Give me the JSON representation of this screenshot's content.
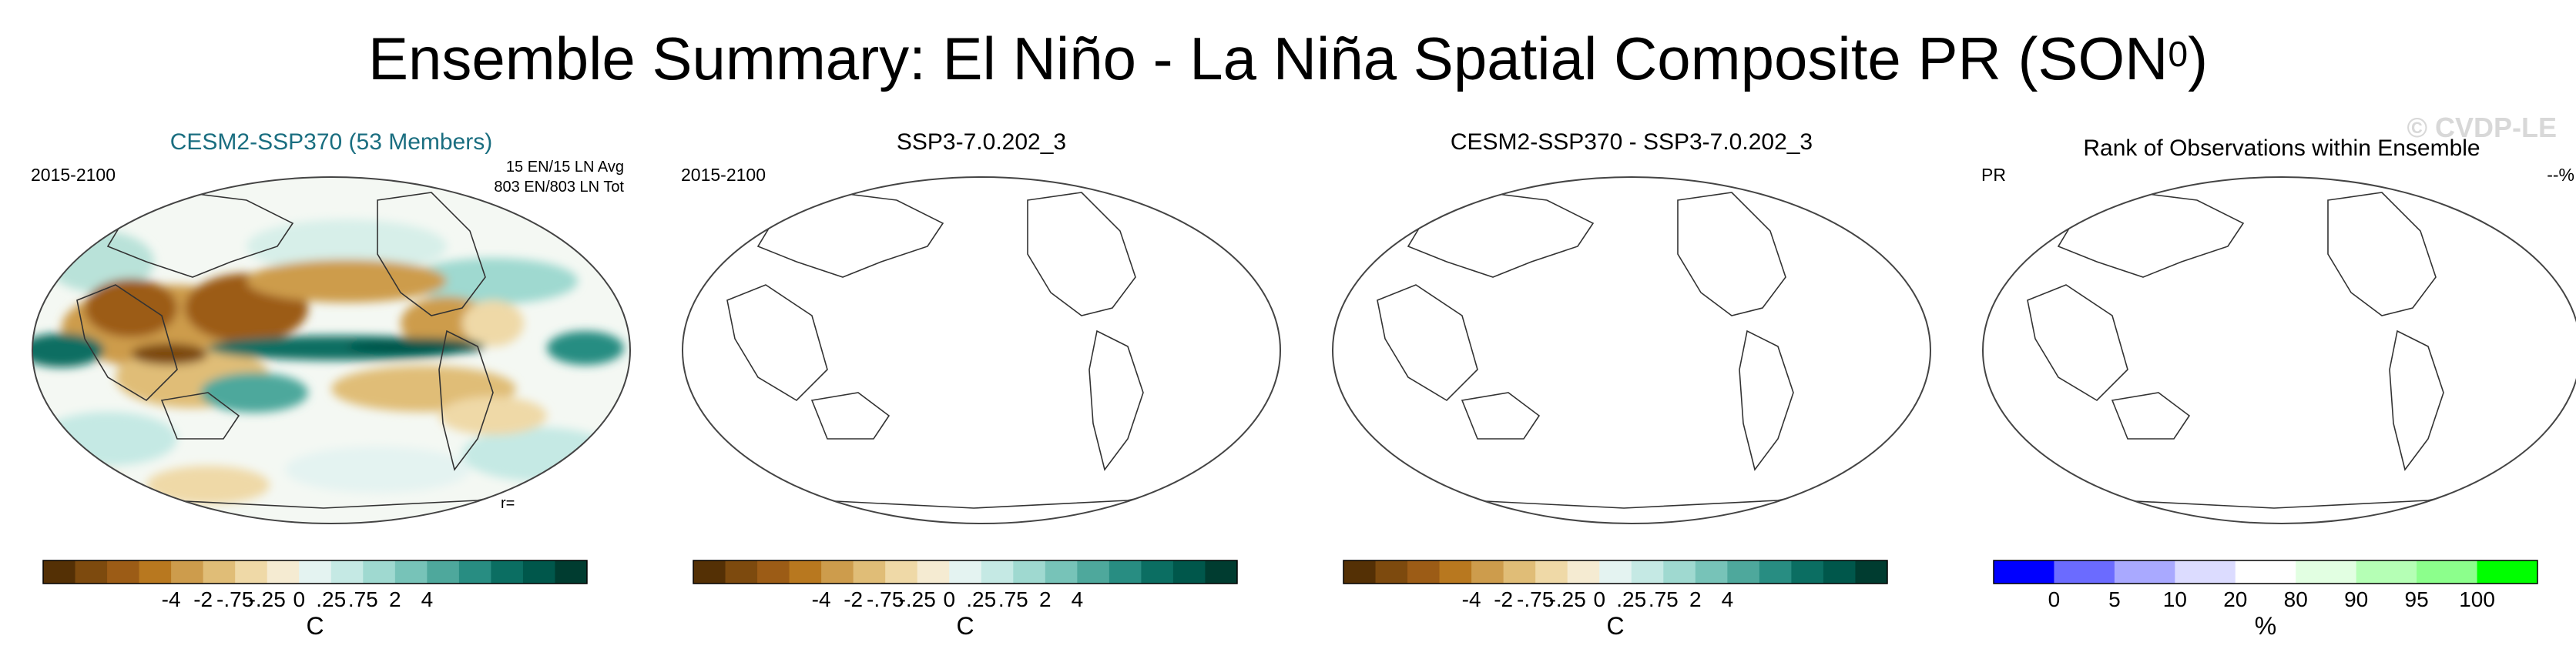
{
  "title": {
    "main": "Ensemble Summary: El Niño - La Niña Spatial Composite PR (SON",
    "sup": "0",
    "close": ")"
  },
  "watermark": "© CVDP-LE",
  "colors": {
    "brbg": [
      "#543005",
      "#7d4a0e",
      "#9c5c16",
      "#b8781f",
      "#cd9c4c",
      "#e0bd77",
      "#efd9a7",
      "#f5ebd2",
      "#e4f3f1",
      "#c5e9e4",
      "#9fd9d0",
      "#77c3b8",
      "#4ea89c",
      "#288d82",
      "#0b6e62",
      "#00574b",
      "#003c30"
    ],
    "rank": [
      "#0000ff",
      "#6b6bff",
      "#a9a9ff",
      "#dcdcff",
      "#ffffff",
      "#e2ffe2",
      "#b5ffb5",
      "#8cff8c",
      "#00ff00"
    ]
  },
  "panels": [
    {
      "title": "CESM2-SSP370 (53 Members)",
      "left_label": "2015-2100",
      "right_line1": "15 EN/15 LN Avg",
      "right_line2": "803 EN/803 LN Tot",
      "corr": "r=",
      "colorbar_labels": [
        "-4",
        "-2",
        "-.75",
        "-.25",
        "0",
        ".25",
        ".75",
        "2",
        "4"
      ],
      "units": "C"
    },
    {
      "title": "SSP3-7.0.202_3",
      "left_label": "2015-2100",
      "colorbar_labels": [
        "-4",
        "-2",
        "-.75",
        "-.25",
        "0",
        ".25",
        ".75",
        "2",
        "4"
      ],
      "units": "C"
    },
    {
      "title": "CESM2-SSP370 - SSP3-7.0.202_3",
      "colorbar_labels": [
        "-4",
        "-2",
        "-.75",
        "-.25",
        "0",
        ".25",
        ".75",
        "2",
        "4"
      ],
      "units": "C"
    },
    {
      "title": "Rank of Observations within Ensemble",
      "left_label": "PR",
      "right_label": "--%",
      "colorbar_labels": [
        "0",
        "5",
        "10",
        "20",
        "80",
        "90",
        "95",
        "100"
      ],
      "units": "%"
    }
  ],
  "chart_data": [
    {
      "type": "heatmap",
      "title": "CESM2-SSP370 (53 Members)",
      "field": "PR composite (El Niño - La Niña), SON0",
      "colorbar_levels": [
        -4,
        -2,
        -0.75,
        -0.25,
        0,
        0.25,
        0.75,
        2,
        4
      ],
      "units": "C",
      "period": "2015-2100"
    },
    {
      "type": "heatmap",
      "title": "SSP3-7.0.202_3",
      "field": "no data plotted",
      "colorbar_levels": [
        -4,
        -2,
        -0.75,
        -0.25,
        0,
        0.25,
        0.75,
        2,
        4
      ],
      "units": "C",
      "period": "2015-2100"
    },
    {
      "type": "heatmap",
      "title": "CESM2-SSP370 - SSP3-7.0.202_3",
      "field": "no data plotted",
      "colorbar_levels": [
        -4,
        -2,
        -0.75,
        -0.25,
        0,
        0.25,
        0.75,
        2,
        4
      ],
      "units": "C"
    },
    {
      "type": "heatmap",
      "title": "Rank of Observations within Ensemble",
      "field": "PR",
      "colorbar_levels": [
        0,
        5,
        10,
        20,
        80,
        90,
        95,
        100
      ],
      "units": "%"
    }
  ]
}
